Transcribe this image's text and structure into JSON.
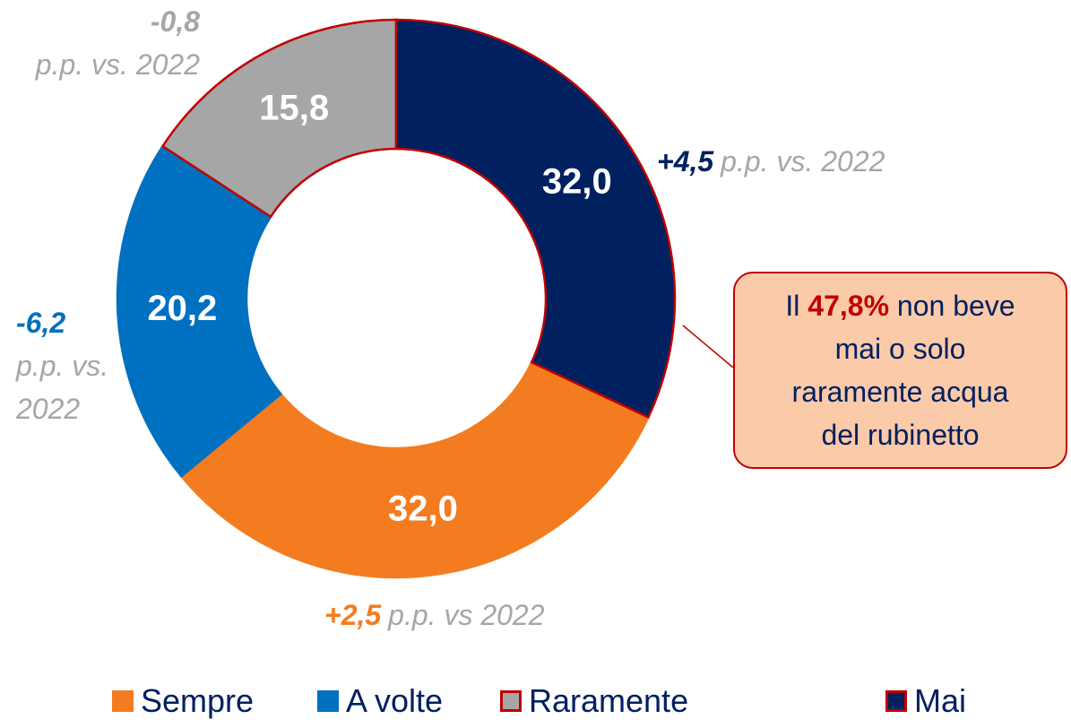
{
  "chart_data": {
    "type": "pie",
    "categories": [
      "Sempre",
      "A volte",
      "Raramente",
      "Mai"
    ],
    "values": [
      32.0,
      20.2,
      15.8,
      32.0
    ],
    "value_labels": [
      "32,0",
      "20,2",
      "15,8",
      "32,0"
    ],
    "colors": [
      "#f47c20",
      "#0070c0",
      "#a6a6a6",
      "#002060"
    ],
    "edge_colors": [
      "#f47c20",
      "#0070c0",
      "#c00000",
      "#c00000"
    ],
    "donut": true,
    "legend": "bottom",
    "annotations": [
      {
        "change": "+2,5",
        "note": "p.p. vs 2022"
      },
      {
        "change": "-6,2",
        "note": "p.p. vs. 2022"
      },
      {
        "change": "-0,8",
        "note": "p.p. vs. 2022"
      },
      {
        "change": "+4,5",
        "note": "p.p. vs. 2022"
      }
    ],
    "note_color": "#a6a6a6",
    "callout": {
      "before": "Il",
      "highlight": "47,8%",
      "after": "non beve mai o solo raramente acqua del rubinetto"
    }
  }
}
